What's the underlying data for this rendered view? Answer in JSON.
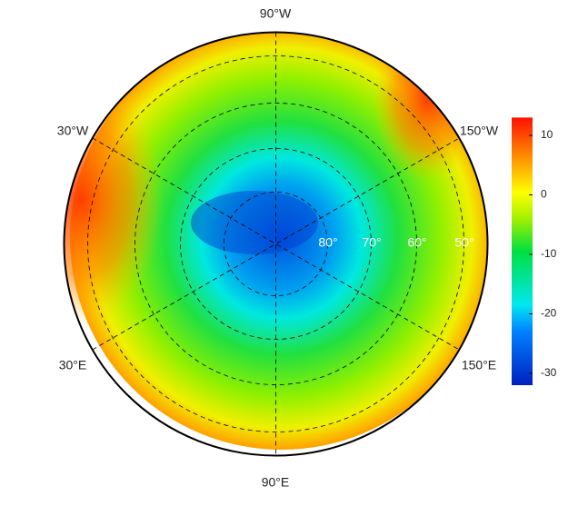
{
  "map": {
    "longitude_labels": [
      "90°W",
      "30°W",
      "150°W",
      "30°E",
      "150°E",
      "90°E"
    ],
    "latitude_labels": [
      "80°",
      "70°",
      "60°",
      "50°"
    ]
  },
  "colorbar": {
    "lim": [
      -32,
      13
    ],
    "ticks": [
      10,
      0,
      -10,
      -20,
      -30
    ]
  }
}
